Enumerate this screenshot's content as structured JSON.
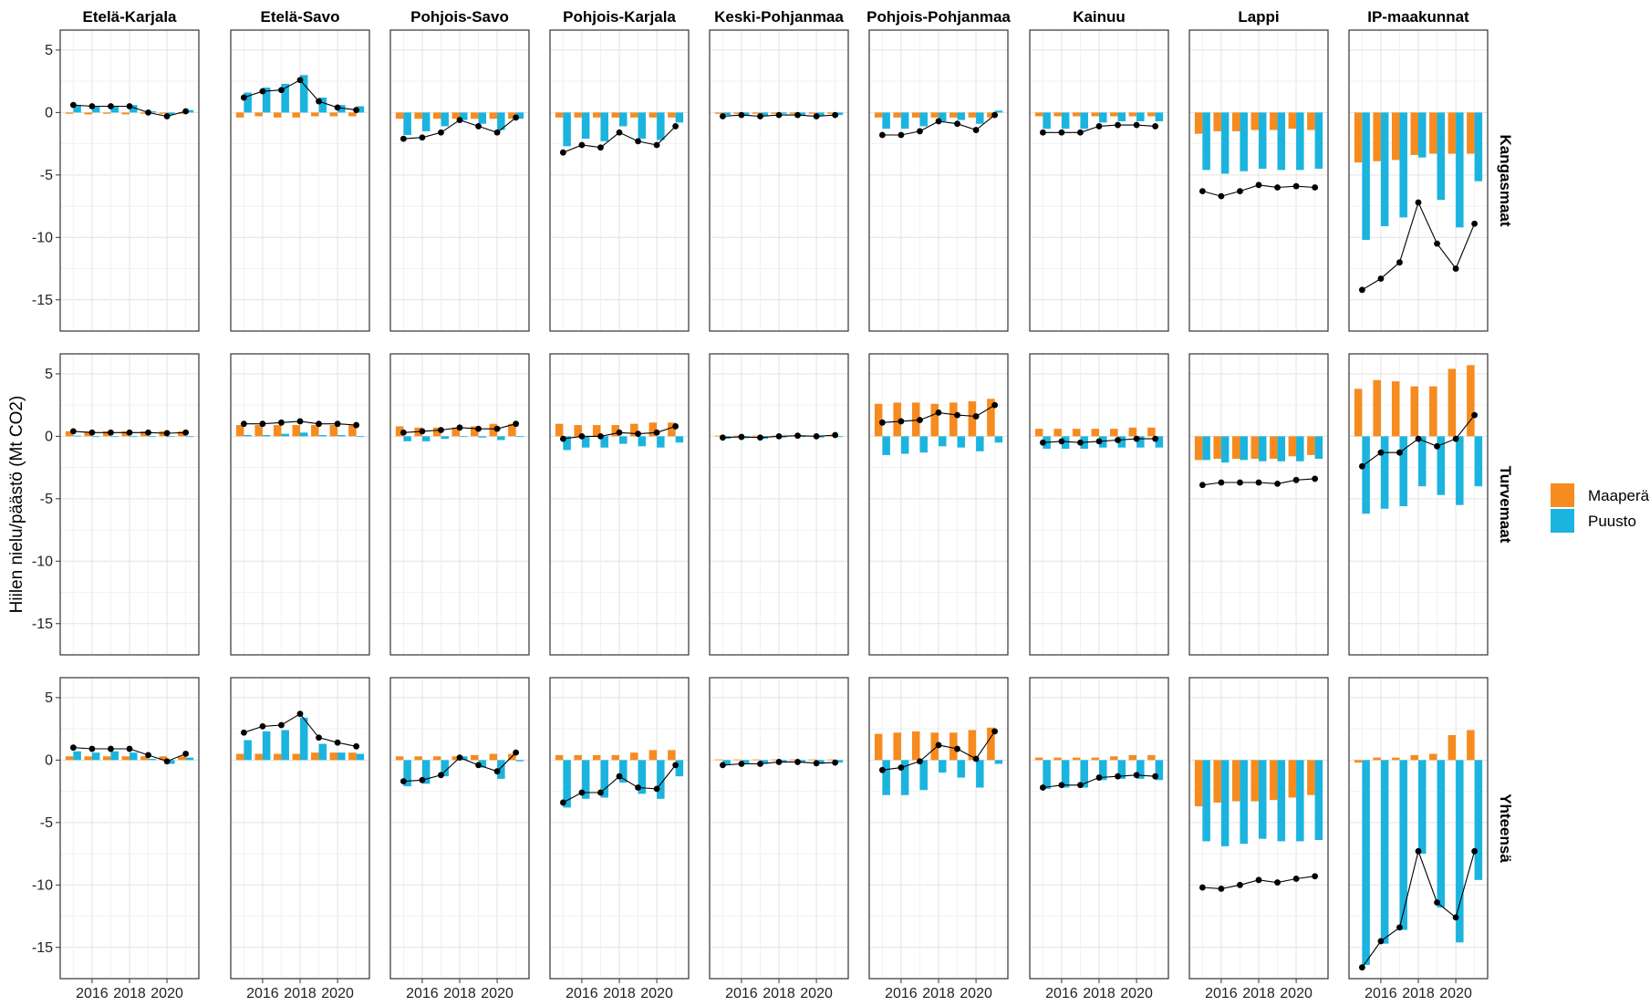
{
  "chart_data": {
    "type": "bar",
    "ylabel": "Hiilen nielu/päästö (Mt CO2)",
    "xlabel": "",
    "x": [
      2015,
      2016,
      2017,
      2018,
      2019,
      2020,
      2021
    ],
    "x_tick_values": [
      2016,
      2018,
      2020
    ],
    "x_tick_labels": [
      "2016",
      "2018",
      "2020"
    ],
    "xlim": [
      2014.3,
      2021.7
    ],
    "ylim": [
      -17.5,
      6.6
    ],
    "y_ticks": [
      5,
      0,
      -5,
      -10,
      -15
    ],
    "grid": true,
    "legend_position": "right",
    "legend": [
      {
        "label": "Maaperä",
        "color": "#F68B1F"
      },
      {
        "label": "Puusto",
        "color": "#1BB4DF"
      }
    ],
    "colors": {
      "maapera": "#F68B1F",
      "puusto": "#1BB4DF",
      "total": "#000000"
    },
    "columns": [
      "Etelä-Karjala",
      "Etelä-Savo",
      "Pohjois-Savo",
      "Pohjois-Karjala",
      "Keski-Pohjanmaa",
      "Pohjois-Pohjanmaa",
      "Kainuu",
      "Lappi",
      "IP-maakunnat"
    ],
    "rows": [
      "Kangasmaat",
      "Turvemaat",
      "Yhteensä"
    ],
    "panels": [
      [
        {
          "maapera": [
            -0.1,
            -0.15,
            -0.1,
            -0.15,
            -0.1,
            -0.1,
            -0.1
          ],
          "puusto": [
            0.6,
            0.5,
            0.5,
            0.6,
            0.1,
            -0.2,
            0.2
          ],
          "total": [
            0.6,
            0.5,
            0.5,
            0.5,
            0.0,
            -0.3,
            0.1
          ]
        },
        {
          "maapera": [
            -0.4,
            -0.3,
            -0.4,
            -0.4,
            -0.3,
            -0.3,
            -0.3
          ],
          "puusto": [
            1.6,
            2.0,
            2.3,
            3.0,
            1.2,
            0.6,
            0.5
          ],
          "total": [
            1.2,
            1.7,
            1.8,
            2.6,
            0.9,
            0.4,
            0.2
          ]
        },
        {
          "maapera": [
            -0.5,
            -0.5,
            -0.5,
            -0.5,
            -0.5,
            -0.5,
            -0.5
          ],
          "puusto": [
            -1.8,
            -1.5,
            -1.1,
            -0.6,
            -0.9,
            -1.4,
            -0.5
          ],
          "total": [
            -2.1,
            -2.0,
            -1.6,
            -0.6,
            -1.1,
            -1.6,
            -0.4
          ]
        },
        {
          "maapera": [
            -0.4,
            -0.4,
            -0.4,
            -0.4,
            -0.4,
            -0.4,
            -0.4
          ],
          "puusto": [
            -2.7,
            -2.1,
            -2.3,
            -1.1,
            -2.1,
            -2.2,
            -0.8
          ],
          "total": [
            -3.2,
            -2.6,
            -2.8,
            -1.6,
            -2.3,
            -2.6,
            -1.1
          ]
        },
        {
          "maapera": [
            -0.1,
            -0.1,
            -0.1,
            -0.1,
            -0.1,
            -0.1,
            -0.1
          ],
          "puusto": [
            -0.2,
            -0.2,
            -0.3,
            -0.1,
            -0.2,
            -0.3,
            -0.2
          ],
          "total": [
            -0.3,
            -0.2,
            -0.3,
            -0.2,
            -0.2,
            -0.3,
            -0.2
          ]
        },
        {
          "maapera": [
            -0.4,
            -0.4,
            -0.4,
            -0.4,
            -0.4,
            -0.4,
            -0.4
          ],
          "puusto": [
            -1.3,
            -1.3,
            -1.1,
            -0.7,
            -0.6,
            -0.9,
            0.15
          ],
          "total": [
            -1.8,
            -1.8,
            -1.5,
            -0.7,
            -0.9,
            -1.4,
            -0.2
          ]
        },
        {
          "maapera": [
            -0.3,
            -0.3,
            -0.3,
            -0.3,
            -0.3,
            -0.3,
            -0.3
          ],
          "puusto": [
            -1.3,
            -1.3,
            -1.3,
            -0.8,
            -0.7,
            -0.7,
            -0.7
          ],
          "total": [
            -1.6,
            -1.6,
            -1.6,
            -1.1,
            -1.0,
            -1.0,
            -1.1
          ]
        },
        {
          "maapera": [
            -1.7,
            -1.5,
            -1.5,
            -1.4,
            -1.4,
            -1.3,
            -1.4
          ],
          "puusto": [
            -4.6,
            -4.9,
            -4.7,
            -4.5,
            -4.6,
            -4.6,
            -4.5
          ],
          "total": [
            -6.3,
            -6.7,
            -6.3,
            -5.8,
            -6.0,
            -5.9,
            -6.0
          ]
        },
        {
          "maapera": [
            -4.0,
            -3.9,
            -3.8,
            -3.4,
            -3.3,
            -3.3,
            -3.3
          ],
          "puusto": [
            -10.2,
            -9.1,
            -8.4,
            -3.6,
            -7.0,
            -9.2,
            -5.5
          ],
          "total": [
            -14.2,
            -13.3,
            -12.0,
            -7.2,
            -10.5,
            -12.5,
            -8.9
          ]
        }
      ],
      [
        {
          "maapera": [
            0.4,
            0.4,
            0.4,
            0.4,
            0.4,
            0.4,
            0.4
          ],
          "puusto": [
            0.05,
            -0.05,
            0.0,
            -0.05,
            0.0,
            -0.05,
            0.0
          ],
          "total": [
            0.4,
            0.3,
            0.3,
            0.3,
            0.3,
            0.25,
            0.3
          ]
        },
        {
          "maapera": [
            0.9,
            0.9,
            0.9,
            0.9,
            0.9,
            0.9,
            0.9
          ],
          "puusto": [
            0.1,
            0.1,
            0.2,
            0.3,
            0.1,
            0.1,
            -0.05
          ],
          "total": [
            1.0,
            1.0,
            1.1,
            1.2,
            1.0,
            1.0,
            0.9
          ]
        },
        {
          "maapera": [
            0.8,
            0.7,
            0.7,
            0.7,
            0.8,
            1.0,
            1.0
          ],
          "puusto": [
            -0.4,
            -0.4,
            -0.2,
            0.0,
            -0.1,
            -0.3,
            0.0
          ],
          "total": [
            0.3,
            0.4,
            0.5,
            0.7,
            0.6,
            0.6,
            1.0
          ]
        },
        {
          "maapera": [
            1.0,
            0.9,
            0.9,
            0.9,
            1.0,
            1.1,
            1.1
          ],
          "puusto": [
            -1.1,
            -0.9,
            -0.9,
            -0.6,
            -0.8,
            -0.9,
            -0.5
          ],
          "total": [
            -0.2,
            0.0,
            0.0,
            0.3,
            0.2,
            0.3,
            0.8
          ]
        },
        {
          "maapera": [
            0.05,
            0.05,
            0.05,
            0.05,
            0.05,
            0.05,
            0.05
          ],
          "puusto": [
            -0.2,
            -0.15,
            -0.2,
            -0.1,
            -0.05,
            -0.1,
            -0.05
          ],
          "total": [
            -0.1,
            -0.05,
            -0.1,
            0.0,
            0.05,
            0.0,
            0.1
          ]
        },
        {
          "maapera": [
            2.6,
            2.7,
            2.7,
            2.6,
            2.7,
            2.8,
            3.0
          ],
          "puusto": [
            -1.5,
            -1.4,
            -1.3,
            -0.8,
            -0.9,
            -1.2,
            -0.5
          ],
          "total": [
            1.1,
            1.2,
            1.3,
            1.9,
            1.7,
            1.6,
            2.5
          ]
        },
        {
          "maapera": [
            0.6,
            0.6,
            0.6,
            0.6,
            0.6,
            0.7,
            0.7
          ],
          "puusto": [
            -1.0,
            -1.0,
            -1.0,
            -0.9,
            -0.9,
            -0.9,
            -0.9
          ],
          "total": [
            -0.5,
            -0.4,
            -0.5,
            -0.4,
            -0.3,
            -0.2,
            -0.2
          ]
        },
        {
          "maapera": [
            -1.9,
            -1.8,
            -1.8,
            -1.8,
            -1.8,
            -1.6,
            -1.5
          ],
          "puusto": [
            -1.9,
            -2.1,
            -1.9,
            -2.0,
            -2.0,
            -2.0,
            -1.8
          ],
          "total": [
            -3.9,
            -3.7,
            -3.7,
            -3.7,
            -3.8,
            -3.5,
            -3.4
          ]
        },
        {
          "maapera": [
            3.8,
            4.5,
            4.4,
            4.0,
            4.0,
            5.4,
            5.7
          ],
          "puusto": [
            -6.2,
            -5.8,
            -5.6,
            -4.0,
            -4.7,
            -5.5,
            -4.0
          ],
          "total": [
            -2.4,
            -1.3,
            -1.3,
            -0.2,
            -0.8,
            -0.2,
            1.7
          ]
        }
      ],
      [
        {
          "maapera": [
            0.3,
            0.3,
            0.3,
            0.3,
            0.3,
            0.3,
            0.3
          ],
          "puusto": [
            0.7,
            0.6,
            0.7,
            0.6,
            0.1,
            -0.3,
            0.2
          ],
          "total": [
            1.0,
            0.9,
            0.9,
            0.9,
            0.4,
            -0.1,
            0.5
          ]
        },
        {
          "maapera": [
            0.5,
            0.5,
            0.5,
            0.5,
            0.6,
            0.6,
            0.6
          ],
          "puusto": [
            1.6,
            2.3,
            2.4,
            3.4,
            1.3,
            0.6,
            0.5
          ],
          "total": [
            2.2,
            2.7,
            2.8,
            3.7,
            1.8,
            1.4,
            1.1
          ]
        },
        {
          "maapera": [
            0.3,
            0.3,
            0.3,
            0.3,
            0.4,
            0.5,
            0.5
          ],
          "puusto": [
            -2.1,
            -1.9,
            -1.3,
            0.3,
            -0.6,
            -1.5,
            -0.1
          ],
          "total": [
            -1.7,
            -1.6,
            -1.2,
            0.2,
            -0.4,
            -0.9,
            0.6
          ]
        },
        {
          "maapera": [
            0.4,
            0.4,
            0.4,
            0.4,
            0.6,
            0.8,
            0.8
          ],
          "puusto": [
            -3.8,
            -3.1,
            -3.0,
            -1.8,
            -2.7,
            -3.1,
            -1.3
          ],
          "total": [
            -3.4,
            -2.6,
            -2.6,
            -1.3,
            -2.2,
            -2.3,
            -0.4
          ]
        },
        {
          "maapera": [
            0.05,
            0.05,
            0.05,
            0.05,
            0.05,
            0.05,
            0.05
          ],
          "puusto": [
            -0.4,
            -0.3,
            -0.3,
            -0.2,
            -0.2,
            -0.3,
            -0.2
          ],
          "total": [
            -0.4,
            -0.3,
            -0.3,
            -0.15,
            -0.15,
            -0.25,
            -0.2
          ]
        },
        {
          "maapera": [
            2.1,
            2.2,
            2.3,
            2.2,
            2.2,
            2.4,
            2.6
          ],
          "puusto": [
            -2.8,
            -2.8,
            -2.4,
            -1.0,
            -1.4,
            -2.2,
            -0.3
          ],
          "total": [
            -0.8,
            -0.6,
            -0.1,
            1.2,
            0.9,
            0.1,
            2.3
          ]
        },
        {
          "maapera": [
            0.2,
            0.2,
            0.2,
            0.2,
            0.3,
            0.4,
            0.4
          ],
          "puusto": [
            -2.3,
            -2.2,
            -2.2,
            -1.6,
            -1.5,
            -1.5,
            -1.6
          ],
          "total": [
            -2.2,
            -2.0,
            -2.0,
            -1.4,
            -1.3,
            -1.2,
            -1.3
          ]
        },
        {
          "maapera": [
            -3.7,
            -3.4,
            -3.3,
            -3.3,
            -3.2,
            -3.0,
            -2.8
          ],
          "puusto": [
            -6.5,
            -6.9,
            -6.7,
            -6.3,
            -6.5,
            -6.5,
            -6.4
          ],
          "total": [
            -10.2,
            -10.3,
            -10.0,
            -9.6,
            -9.8,
            -9.5,
            -9.3
          ]
        },
        {
          "maapera": [
            -0.2,
            0.2,
            0.2,
            0.4,
            0.5,
            2.0,
            2.4
          ],
          "puusto": [
            -16.4,
            -14.7,
            -13.6,
            -7.5,
            -11.8,
            -14.6,
            -9.6
          ],
          "total": [
            -16.6,
            -14.5,
            -13.4,
            -7.3,
            -11.4,
            -12.6,
            -7.3
          ]
        }
      ]
    ]
  }
}
